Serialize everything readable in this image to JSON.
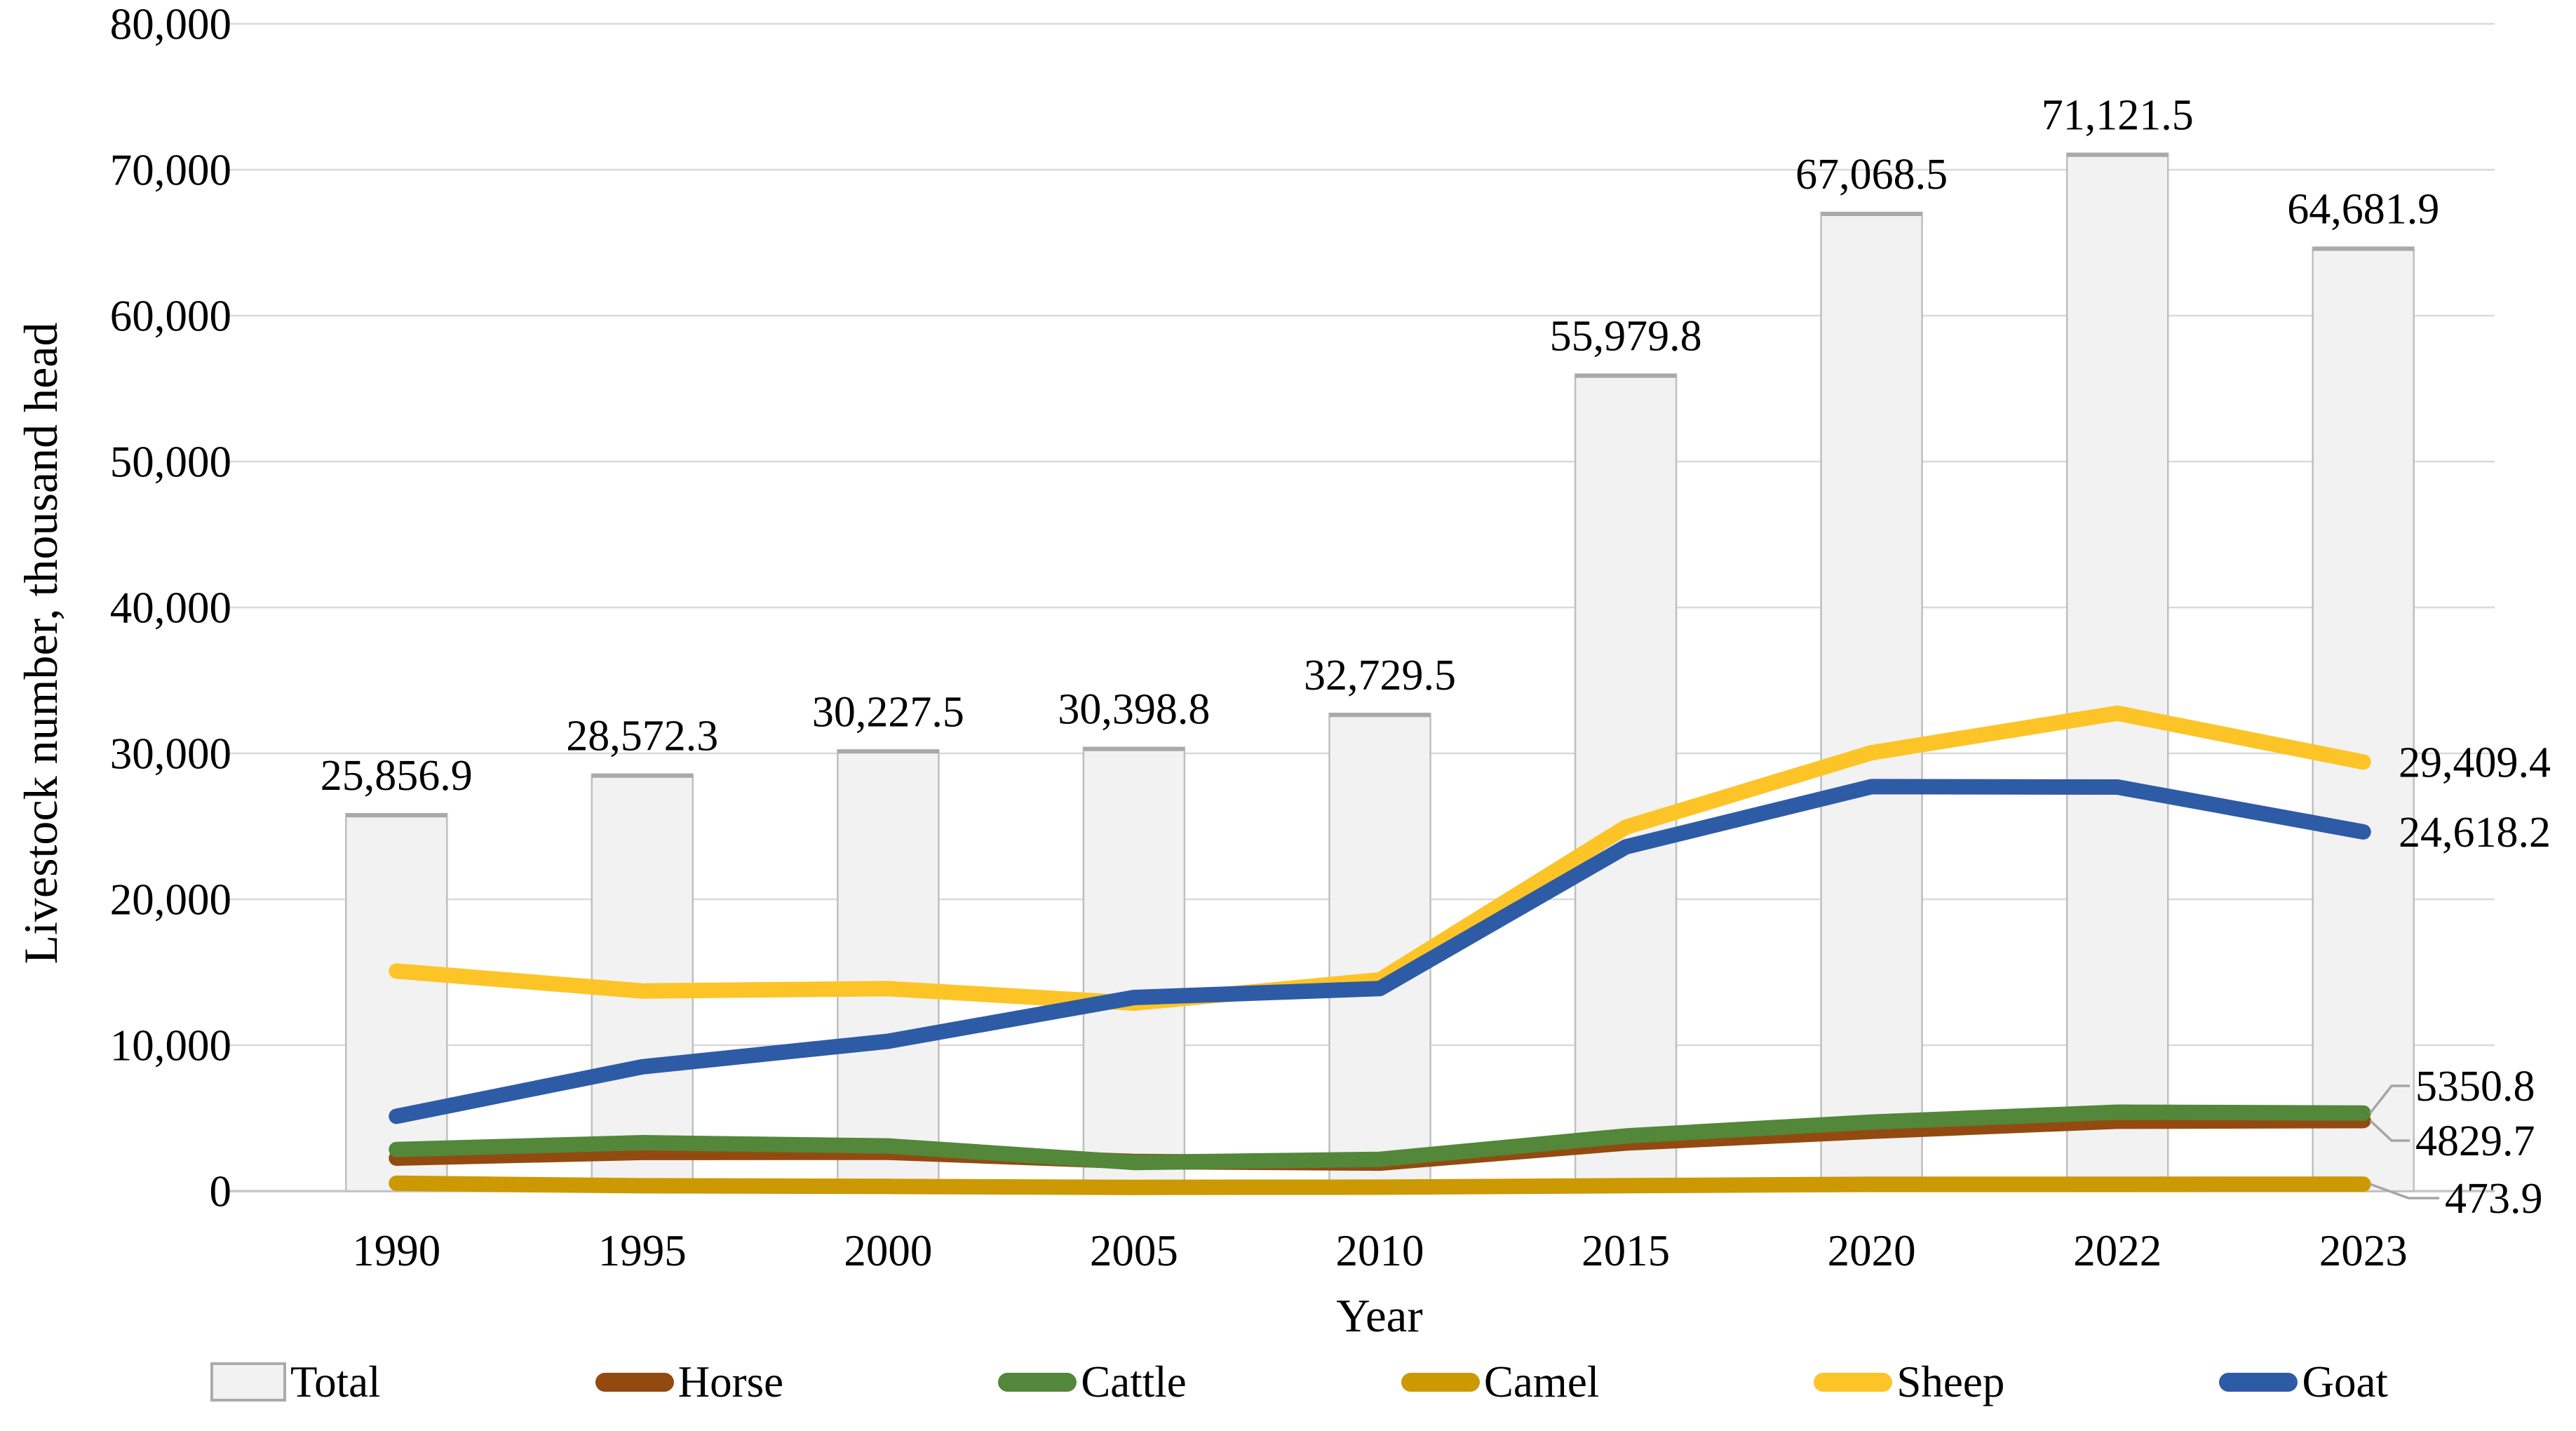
{
  "y_axis": {
    "title": "Livestock number, thousand head",
    "tick_labels": [
      "80,000",
      "70,000",
      "60,000",
      "50,000",
      "40,000",
      "30,000",
      "20,000",
      "10,000",
      "0"
    ]
  },
  "x_axis": {
    "title": "Year"
  },
  "legend": [
    {
      "label": "Total",
      "swatch": "bar",
      "fill": "#F2F2F2",
      "border": "#ABABAB"
    },
    {
      "label": "Horse",
      "swatch": "line",
      "color": "#934A10"
    },
    {
      "label": "Cattle",
      "swatch": "line",
      "color": "#538739"
    },
    {
      "label": "Camel",
      "swatch": "line",
      "color": "#CC9902"
    },
    {
      "label": "Sheep",
      "swatch": "line",
      "color": "#FCC427"
    },
    {
      "label": "Goat",
      "swatch": "line",
      "color": "#2E5BA6"
    }
  ],
  "chart_data": {
    "type": "combo-bar-line",
    "title": "",
    "xlabel": "Year",
    "ylabel": "Livestock number, thousand head",
    "categories": [
      "1990",
      "1995",
      "2000",
      "2005",
      "2010",
      "2015",
      "2020",
      "2022",
      "2023"
    ],
    "ylim": [
      0,
      80000
    ],
    "y_step": 10000,
    "grid": true,
    "legend_position": "bottom",
    "bar_series": {
      "name": "Total",
      "fill": "#F2F2F2",
      "edge": "#BFBFBF",
      "values": [
        25856.9,
        28572.3,
        30227.5,
        30398.8,
        32729.5,
        55979.8,
        67068.5,
        71121.5,
        64681.9
      ],
      "labels": [
        "25,856.9",
        "28,572.3",
        "30,227.5",
        "30,398.8",
        "32,729.5",
        "55,979.8",
        "67,068.5",
        "71,121.5",
        "64,681.9"
      ]
    },
    "line_series": [
      {
        "name": "Horse",
        "color": "#934A10",
        "values": [
          2262.0,
          2648.4,
          2660.7,
          2029.1,
          1920.3,
          3295.3,
          4093.9,
          4790.5,
          4829.7
        ],
        "end_label": "4829.7"
      },
      {
        "name": "Cattle",
        "color": "#538739",
        "values": [
          2849.1,
          3317.1,
          3097.6,
          1963.6,
          2176.0,
          3780.4,
          4732.0,
          5409.3,
          5350.8
        ],
        "end_label": "5350.8"
      },
      {
        "name": "Camel",
        "color": "#CC9902",
        "values": [
          537.5,
          367.5,
          322.9,
          254.2,
          269.6,
          368.0,
          472.9,
          472.5,
          473.9
        ],
        "end_label": "473.9"
      },
      {
        "name": "Sheep",
        "color": "#FCC427",
        "values": [
          15083.0,
          13718.6,
          13876.4,
          12884.5,
          14480.4,
          24943.1,
          30049.5,
          32752.5,
          29409.4
        ],
        "end_label": "29,409.4"
      },
      {
        "name": "Goat",
        "color": "#2E5BA6",
        "values": [
          5125.7,
          8520.7,
          10269.8,
          13267.4,
          13883.2,
          23592.9,
          27720.0,
          27691.7,
          24618.2
        ],
        "end_label": "24,618.2"
      }
    ]
  }
}
